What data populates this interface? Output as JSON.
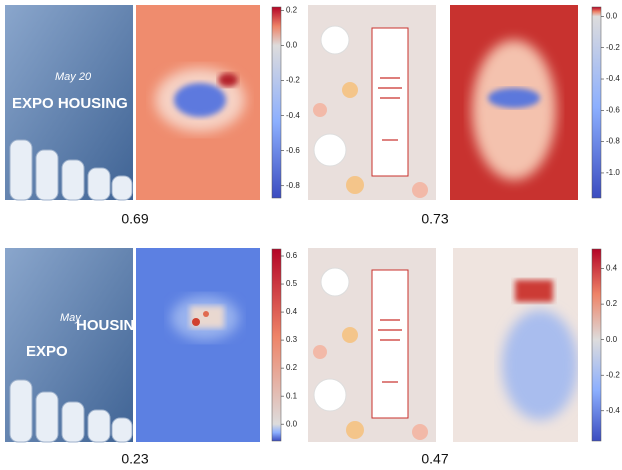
{
  "panels": [
    {
      "image_text": [
        "May 20",
        "EXPO HOUSING"
      ],
      "colorbar": {
        "lim": [
          -0.87,
          0.22
        ],
        "ticks": [
          0.2,
          {
            "value": 0,
            "label": "0.0"
          },
          -0.2,
          -0.4,
          -0.6,
          -0.8
        ]
      },
      "score": 0.69
    },
    {
      "colorbar": {
        "lim": [
          -1.16,
          0.06
        ],
        "ticks": [
          {
            "value": 0,
            "label": "0.0"
          },
          -0.2,
          -0.4,
          -0.6,
          -0.8,
          {
            "value": -1,
            "label": "-1.0"
          }
        ]
      },
      "score": 0.73
    },
    {
      "image_text": [
        "May",
        "HOUSING",
        "EXPO"
      ],
      "colorbar": {
        "lim": [
          -0.06,
          0.625
        ],
        "ticks": [
          0.6,
          0.5,
          0.4,
          0.3,
          0.2,
          0.1,
          {
            "value": 0,
            "label": "0.0"
          }
        ]
      },
      "score": 0.23
    },
    {
      "colorbar": {
        "lim": [
          -0.57,
          0.51
        ],
        "ticks": [
          0.4,
          0.2,
          {
            "value": 0,
            "label": "0.0"
          },
          -0.2,
          -0.4
        ]
      },
      "score": 0.47
    }
  ]
}
